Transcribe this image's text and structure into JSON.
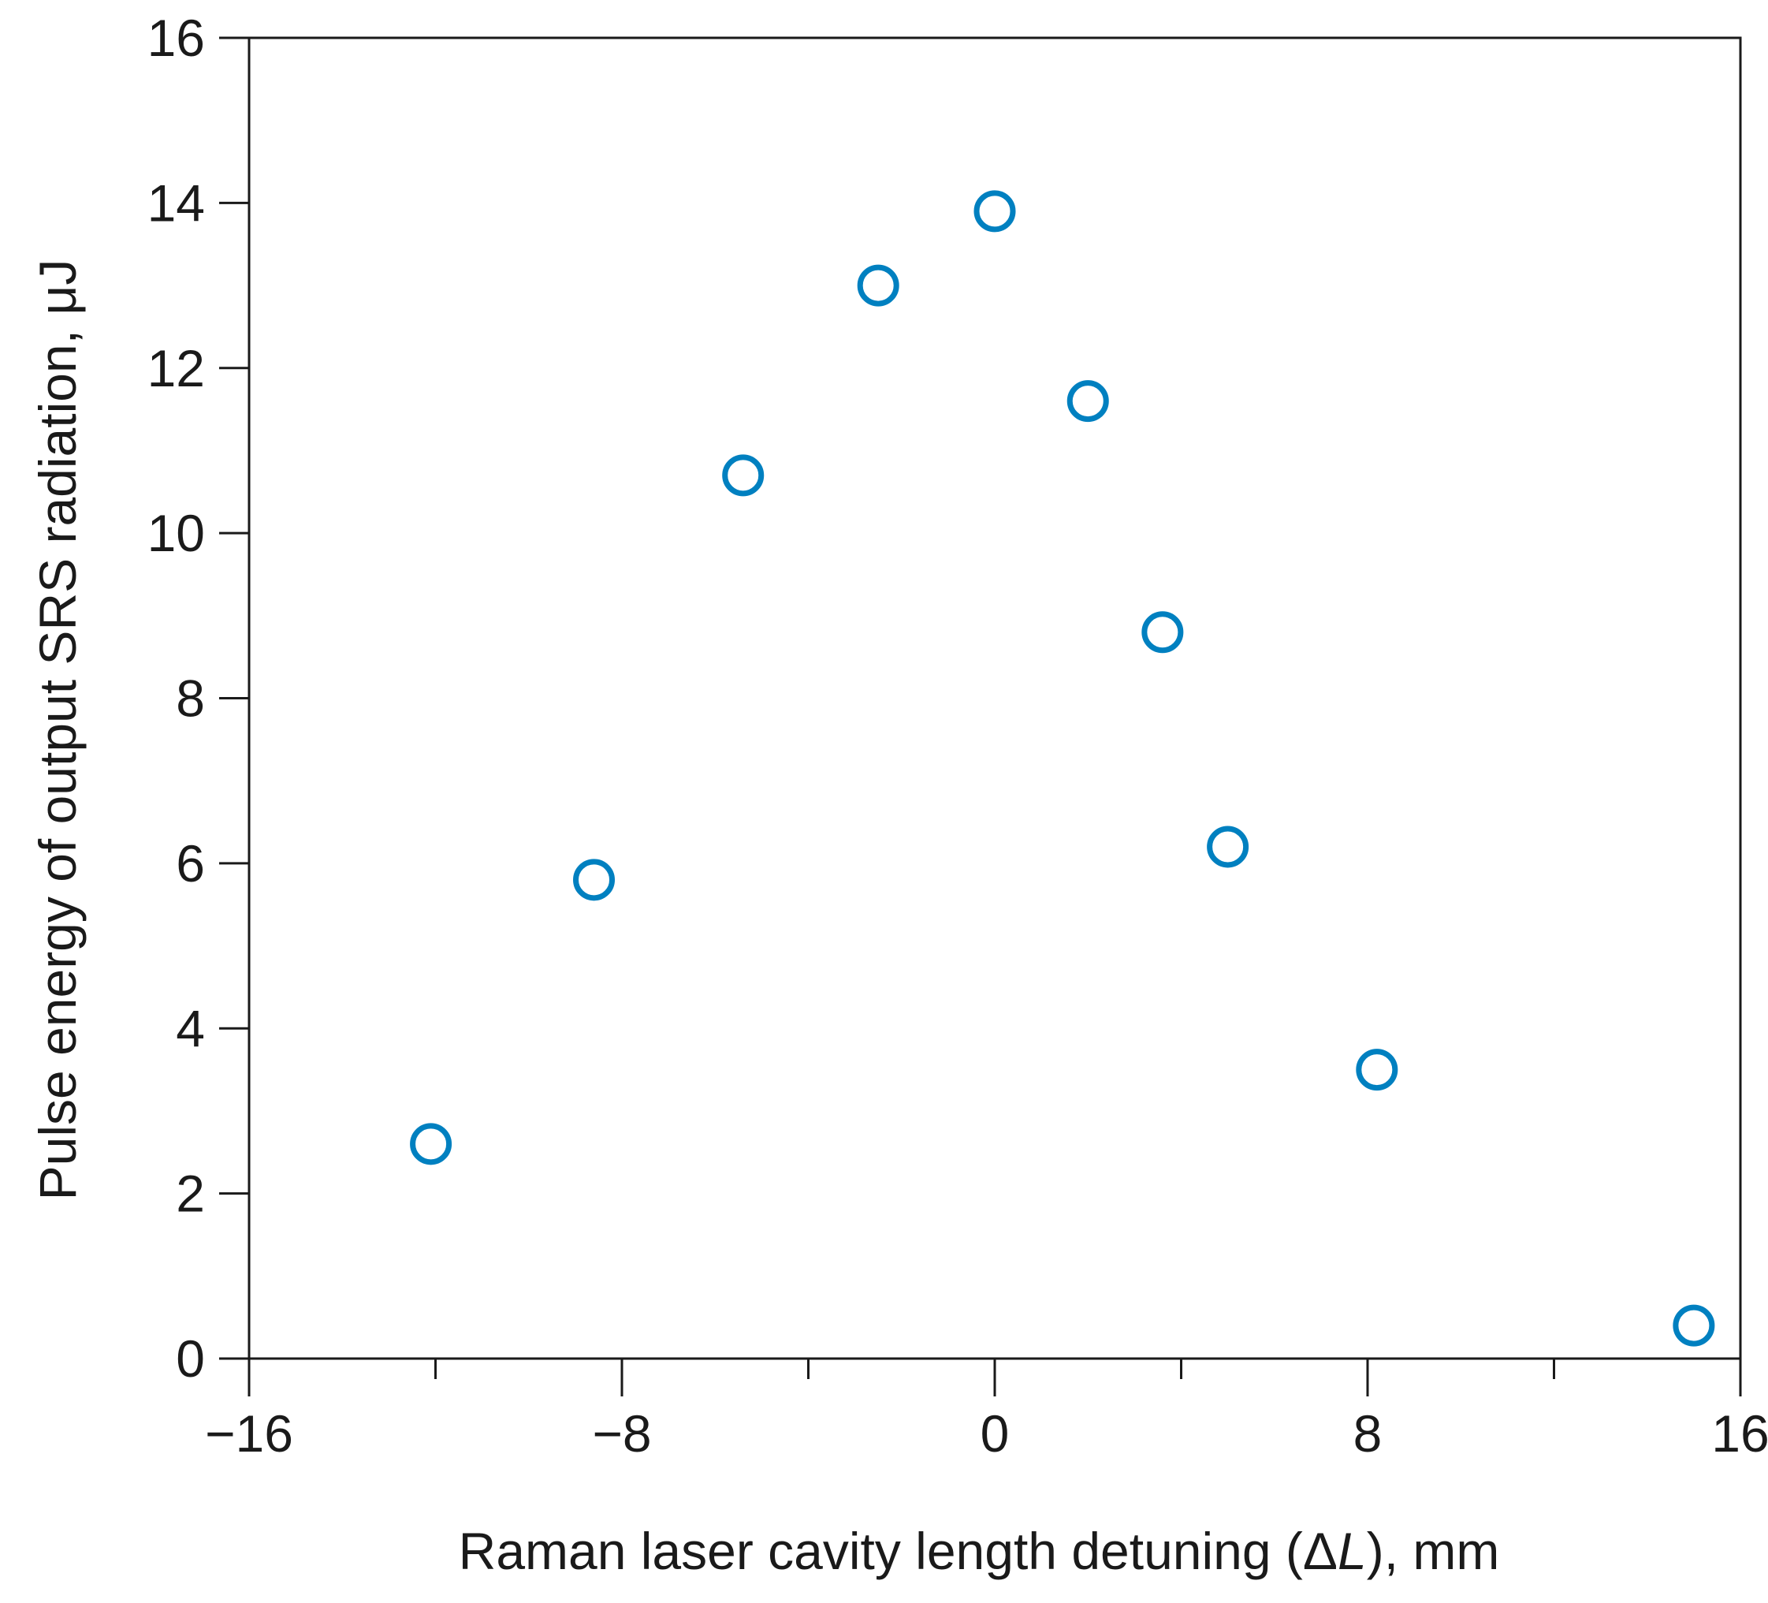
{
  "chart_data": {
    "type": "scatter",
    "title": "",
    "xlabel_parts": [
      "Raman laser cavity length detuning (",
      "Δ",
      "L",
      "), mm"
    ],
    "ylabel": "Pulse energy of output SRS radiation, μJ",
    "xlim": [
      -16,
      16
    ],
    "ylim": [
      0,
      16
    ],
    "x_major_ticks": [
      -16,
      -8,
      0,
      8,
      16
    ],
    "x_major_tick_labels": [
      "−16",
      "−8",
      "0",
      "8",
      "16"
    ],
    "x_minor_ticks": [
      -12,
      -4,
      4,
      12
    ],
    "y_major_ticks": [
      0,
      2,
      4,
      6,
      8,
      10,
      12,
      14,
      16
    ],
    "y_major_tick_labels": [
      "0",
      "2",
      "4",
      "6",
      "8",
      "10",
      "12",
      "14",
      "16"
    ],
    "grid": false,
    "marker": "open-circle",
    "marker_color": "#0080c0",
    "series": [
      {
        "x": [
          -12.1,
          -8.6,
          -5.4,
          -2.5,
          0.0,
          2.0,
          3.6,
          5.0,
          8.2,
          15.0
        ],
        "y": [
          2.6,
          5.8,
          10.7,
          13.0,
          13.9,
          11.6,
          8.8,
          6.2,
          3.5,
          0.4
        ]
      }
    ]
  }
}
